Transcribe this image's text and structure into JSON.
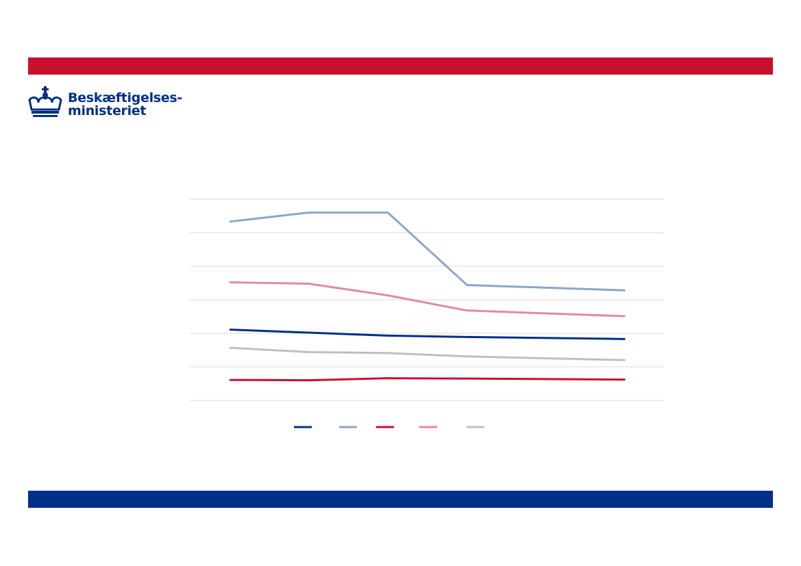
{
  "header": {
    "logo": {
      "line1": "Beskæftigelses-",
      "line2": "ministeriet",
      "icon": "crown-icon"
    }
  },
  "colors": {
    "top_bar": "#c8102e",
    "bottom_bar": "#002f87",
    "brand_text": "#002f87",
    "gridline": "#d9d9d9"
  },
  "chart_data": {
    "type": "line",
    "title": "",
    "xlabel": "",
    "ylabel": "",
    "x": [
      1,
      2,
      3,
      4,
      5,
      6
    ],
    "ylim": [
      0,
      6
    ],
    "y_gridlines": [
      0,
      1,
      2,
      3,
      4,
      5,
      6
    ],
    "grid": "horizontal",
    "legend_position": "bottom",
    "series": [
      {
        "color": "#002f87",
        "values": [
          2.11,
          2.02,
          1.93,
          1.89,
          null,
          1.83
        ]
      },
      {
        "color": "#8ea4cc",
        "values": [
          5.33,
          5.6,
          5.6,
          3.44,
          null,
          3.28
        ]
      },
      {
        "color": "#c8102e",
        "values": [
          0.61,
          0.6,
          0.66,
          0.65,
          null,
          0.62
        ]
      },
      {
        "color": "#e28a9b",
        "values": [
          3.52,
          3.48,
          3.13,
          2.68,
          null,
          2.51
        ]
      },
      {
        "color": "#bfbfbf",
        "values": [
          1.57,
          1.44,
          1.41,
          1.31,
          null,
          1.2
        ]
      }
    ]
  }
}
